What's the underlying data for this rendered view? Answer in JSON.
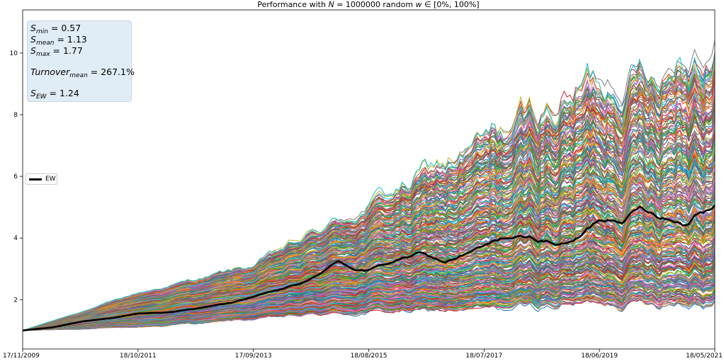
{
  "chart_data": {
    "type": "line",
    "title": "Performance with N = 1000000 random w ∈ [0%, 100%]",
    "title_parts": {
      "prefix": "Performance with ",
      "n_var": "N",
      "n_eq": " = 1000000 random ",
      "w_var": "w",
      "range": " ∈ [0%, 100%]"
    },
    "xlabel": "",
    "ylabel": "",
    "x_start": "17/11/2009",
    "x_end": "18/05/2021",
    "x_tick_labels": [
      "17/11/2009",
      "18/10/2011",
      "17/09/2013",
      "18/08/2015",
      "18/07/2017",
      "18/06/2019",
      "18/05/2021"
    ],
    "y_ticks": [
      2,
      4,
      6,
      8,
      10
    ],
    "ylim": [
      0.4,
      11.4
    ],
    "grid": false,
    "legend": {
      "placement": "center-left",
      "entries": [
        "EW"
      ]
    },
    "series": [
      {
        "name": "EW",
        "color": "#000000",
        "points": [
          [
            "17/11/2009",
            1.0
          ],
          [
            "17/05/2010",
            1.1
          ],
          [
            "17/11/2010",
            1.3
          ],
          [
            "18/05/2011",
            1.4
          ],
          [
            "18/10/2011",
            1.55
          ],
          [
            "18/05/2012",
            1.6
          ],
          [
            "17/11/2012",
            1.75
          ],
          [
            "17/05/2013",
            1.9
          ],
          [
            "17/09/2013",
            2.1
          ],
          [
            "18/02/2014",
            2.3
          ],
          [
            "18/08/2014",
            2.6
          ],
          [
            "18/02/2015",
            3.25
          ],
          [
            "18/05/2015",
            3.0
          ],
          [
            "18/08/2015",
            2.95
          ],
          [
            "18/02/2016",
            3.3
          ],
          [
            "18/06/2016",
            3.5
          ],
          [
            "18/11/2016",
            3.2
          ],
          [
            "18/07/2017",
            3.7
          ],
          [
            "18/11/2017",
            4.0
          ],
          [
            "18/05/2018",
            3.95
          ],
          [
            "18/11/2018",
            3.8
          ],
          [
            "18/02/2019",
            4.0
          ],
          [
            "18/06/2019",
            4.6
          ],
          [
            "18/11/2019",
            4.7
          ],
          [
            "18/02/2020",
            5.0
          ],
          [
            "18/06/2020",
            4.8
          ],
          [
            "18/11/2020",
            4.5
          ],
          [
            "18/02/2021",
            5.0
          ],
          [
            "18/05/2021",
            5.15
          ]
        ]
      }
    ],
    "random_portfolios": {
      "count": 1000000,
      "envelope": {
        "dates": [
          "17/11/2009",
          "18/10/2011",
          "17/09/2013",
          "18/08/2015",
          "18/07/2017",
          "18/06/2019",
          "18/05/2021"
        ],
        "min": [
          1.0,
          1.1,
          1.35,
          1.6,
          1.65,
          1.9,
          2.05
        ],
        "max": [
          1.0,
          2.2,
          3.1,
          5.0,
          7.0,
          9.0,
          10.8
        ]
      }
    },
    "annotation": {
      "s_min_label": "S",
      "s_min_sub": "min",
      "s_min_value": " = 0.57",
      "s_mean_label": "S",
      "s_mean_sub": "mean",
      "s_mean_value": " = 1.13",
      "s_max_label": "S",
      "s_max_sub": "max",
      "s_max_value": " = 1.77",
      "turnover_label": "Turnover",
      "turnover_sub": "mean",
      "turnover_value": " = 267.1%",
      "s_ew_label": "S",
      "s_ew_sub": "EW",
      "s_ew_value": " = 1.24"
    },
    "colors": [
      "#1f77b4",
      "#ff7f0e",
      "#2ca02c",
      "#d62728",
      "#9467bd",
      "#8c564b",
      "#e377c2",
      "#7f7f7f",
      "#bcbd22",
      "#17becf"
    ]
  }
}
